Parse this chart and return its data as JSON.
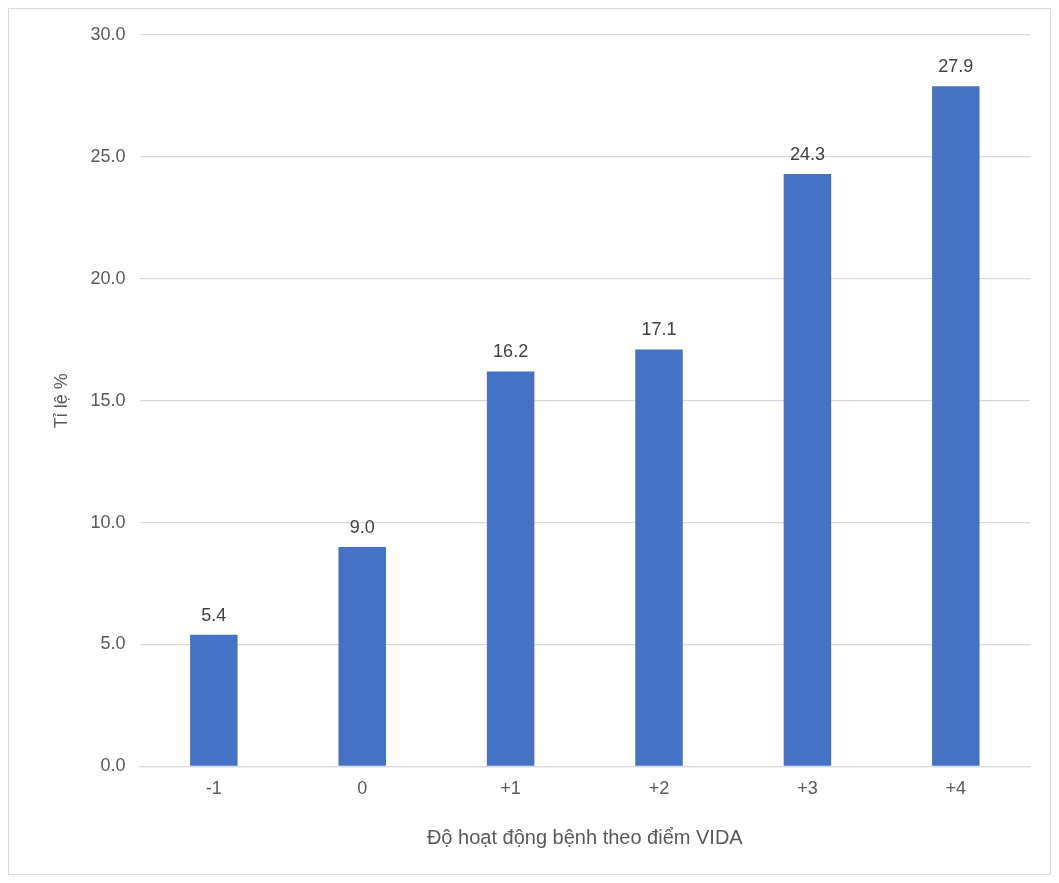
{
  "chart_data": {
    "type": "bar",
    "xlabel": "Độ hoạt động bệnh theo điểm VIDA",
    "ylabel": "Tỉ lệ %",
    "categories": [
      "-1",
      "0",
      "+1",
      "+2",
      "+3",
      "+4"
    ],
    "values": [
      5.4,
      9.0,
      16.2,
      17.1,
      24.3,
      27.9
    ],
    "value_labels": [
      "5.4",
      "9.0",
      "16.2",
      "17.1",
      "24.3",
      "27.9"
    ],
    "color": "#4472c4",
    "ylim": [
      0,
      30
    ],
    "yticks": [
      {
        "value": 0,
        "label": "0.0"
      },
      {
        "value": 5,
        "label": "5.0"
      },
      {
        "value": 10,
        "label": "10.0"
      },
      {
        "value": 15,
        "label": "15.0"
      },
      {
        "value": 20,
        "label": "20.0"
      },
      {
        "value": 25,
        "label": "25.0"
      },
      {
        "value": 30,
        "label": "30.0"
      }
    ],
    "grid": "y",
    "legend": false
  }
}
